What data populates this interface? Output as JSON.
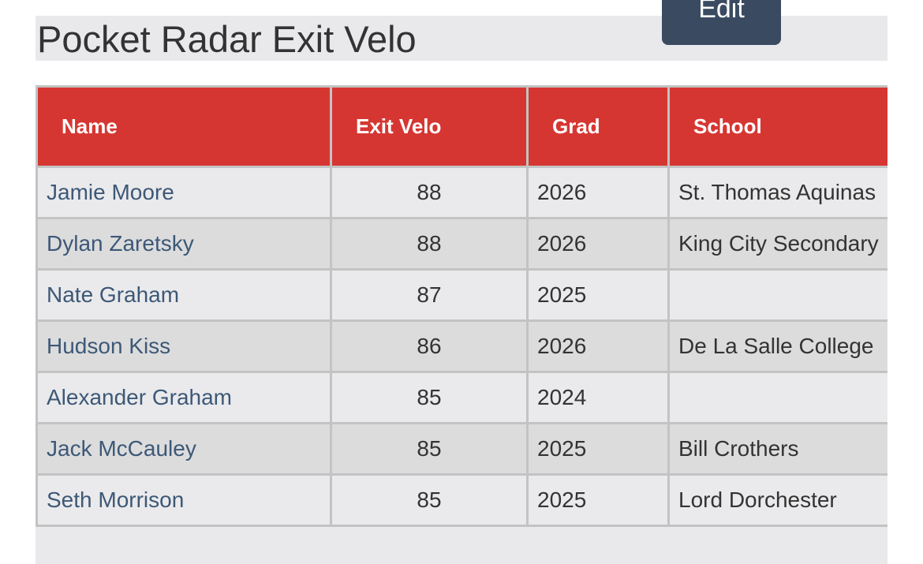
{
  "header": {
    "title": "Pocket Radar Exit Velo",
    "button": "Edit"
  },
  "table": {
    "columns": [
      "Name",
      "Exit Velo",
      "Grad",
      "School"
    ],
    "rows": [
      [
        "Jamie Moore",
        88,
        2026,
        "St. Thomas Aquinas"
      ],
      [
        "Dylan Zaretsky",
        88,
        2026,
        "King City Secondary"
      ],
      [
        "Nate Graham",
        87,
        2025,
        null
      ],
      [
        "Hudson Kiss",
        86,
        2026,
        "De La Salle College"
      ],
      [
        "Alexander Graham",
        85,
        2024,
        null
      ],
      [
        "Jack McCauley",
        85,
        2025,
        "Bill Crothers"
      ],
      [
        "Seth Morrison",
        85,
        2025,
        "Lord Dorchester"
      ]
    ]
  }
}
